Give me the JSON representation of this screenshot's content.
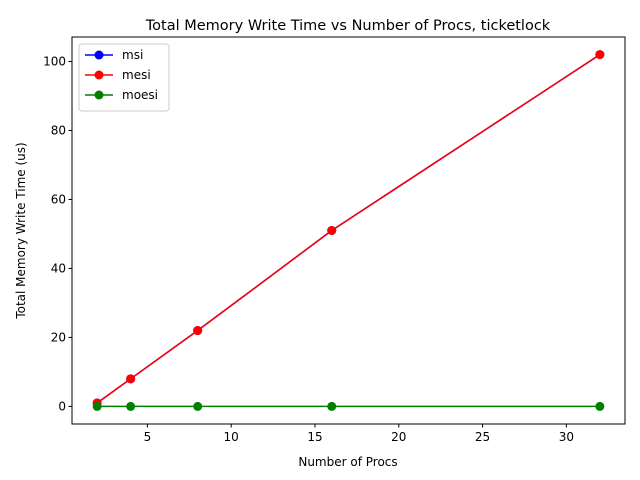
{
  "chart_data": {
    "type": "line",
    "title": "Total Memory Write Time vs Number of Procs, ticketlock",
    "xlabel": "Number of Procs",
    "ylabel": "Total Memory Write Time (us)",
    "xlim": [
      0.5,
      33.5
    ],
    "ylim": [
      -5.1,
      107.1
    ],
    "xticks": [
      5,
      10,
      15,
      20,
      25,
      30
    ],
    "yticks": [
      0,
      20,
      40,
      60,
      80,
      100
    ],
    "grid": false,
    "legend_position": "top-left",
    "x": [
      2,
      4,
      8,
      16,
      32
    ],
    "series": [
      {
        "name": "msi",
        "color": "#0000ff",
        "values": [
          1,
          8,
          22,
          51,
          102
        ]
      },
      {
        "name": "mesi",
        "color": "#ff0000",
        "values": [
          1,
          8,
          22,
          51,
          102
        ]
      },
      {
        "name": "moesi",
        "color": "#008000",
        "values": [
          0,
          0,
          0,
          0,
          0
        ]
      }
    ]
  }
}
